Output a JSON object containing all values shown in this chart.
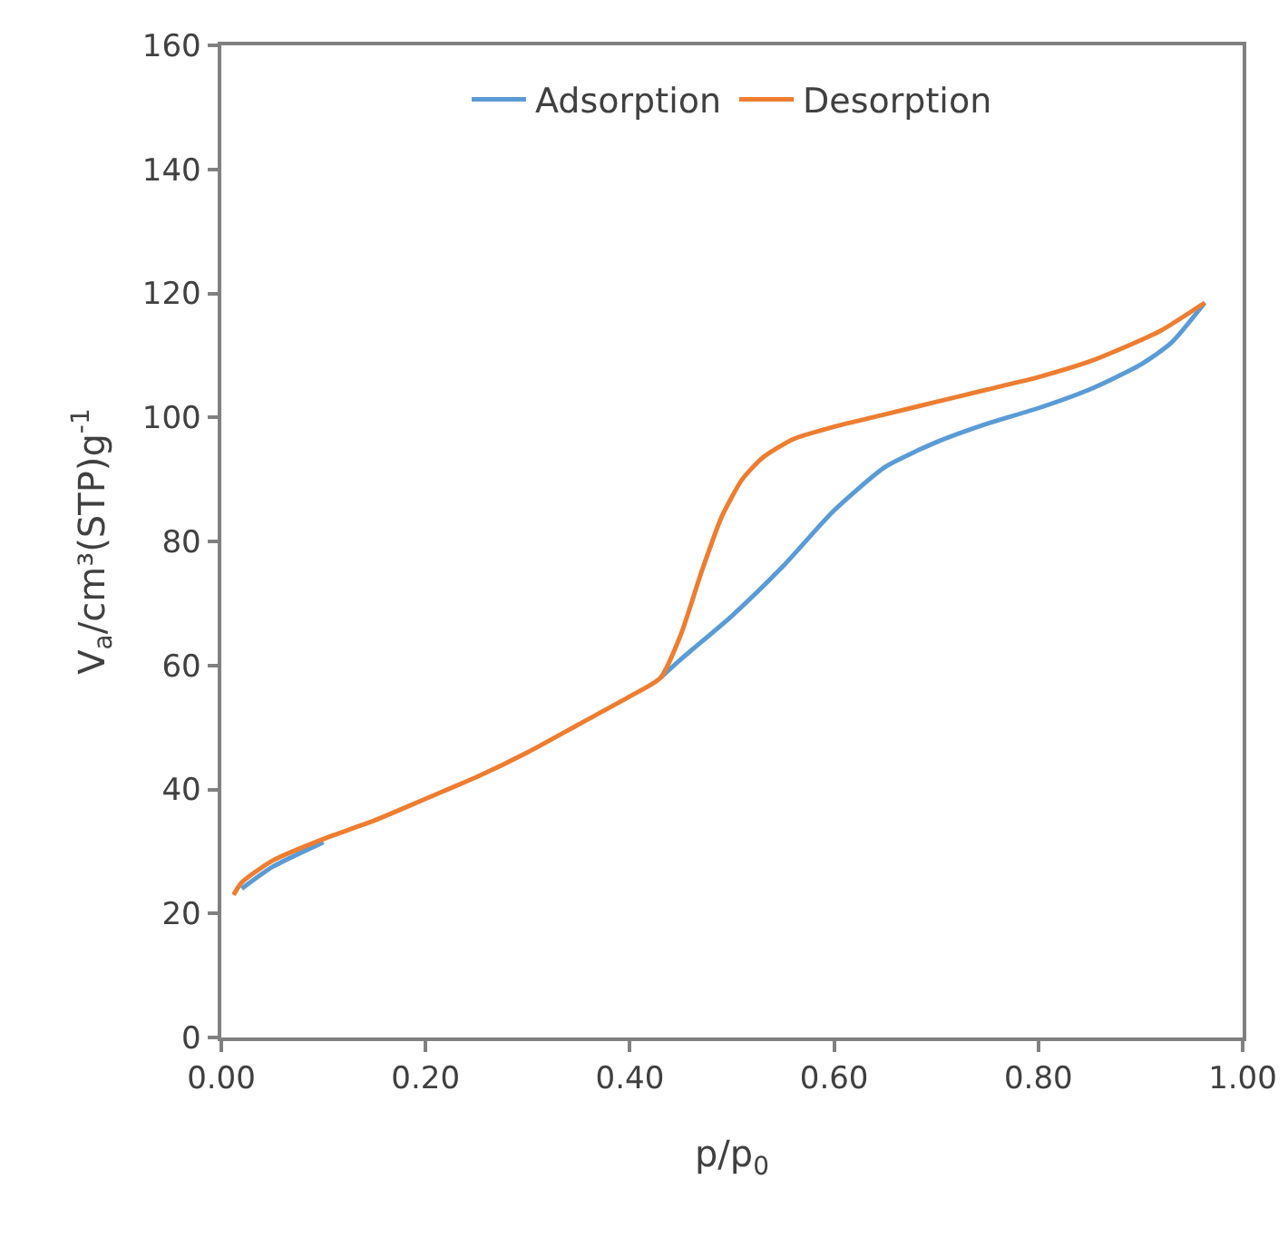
{
  "chart_data": {
    "type": "line",
    "xlabel": "p/p$_{0}$",
    "ylabel": "V$_{a}$/cm³(STP)g$^{-1}$",
    "xlim": [
      0,
      1
    ],
    "ylim": [
      0,
      160
    ],
    "xticks": [
      {
        "value": 0,
        "label": "0.00"
      },
      {
        "value": 0.2,
        "label": "0.20"
      },
      {
        "value": 0.4,
        "label": "0.40"
      },
      {
        "value": 0.6,
        "label": "0.60"
      },
      {
        "value": 0.8,
        "label": "0.80"
      },
      {
        "value": 1,
        "label": "1.00"
      }
    ],
    "yticks": [
      0,
      20,
      40,
      60,
      80,
      100,
      120,
      140,
      160
    ],
    "grid": false,
    "legend": "top",
    "marker": "none",
    "line_style": "solid",
    "series": [
      {
        "name": "Adsorption",
        "color": "#5b9bd5",
        "x": [
          0.02,
          0.05,
          0.1,
          0.15,
          0.2,
          0.25,
          0.3,
          0.35,
          0.4,
          0.43,
          0.45,
          0.5,
          0.55,
          0.6,
          0.65,
          0.7,
          0.75,
          0.8,
          0.85,
          0.9,
          0.93,
          0.963
        ],
        "values": [
          24,
          27.5,
          31.5,
          null,
          null,
          null,
          null,
          null,
          null,
          58,
          61,
          68,
          76,
          85,
          92,
          96,
          99,
          101.5,
          104.5,
          108.5,
          112,
          118.5
        ]
      },
      {
        "name": "Desorption",
        "color": "#ed7d31",
        "x": [
          0.012,
          0.02,
          0.05,
          0.1,
          0.15,
          0.2,
          0.25,
          0.3,
          0.35,
          0.4,
          0.43,
          0.45,
          0.47,
          0.49,
          0.51,
          0.53,
          0.56,
          0.6,
          0.65,
          0.7,
          0.75,
          0.8,
          0.85,
          0.88,
          0.92,
          0.963
        ],
        "values": [
          23,
          25,
          28.5,
          32,
          35,
          38.5,
          42,
          46,
          50.5,
          55,
          58,
          65,
          75,
          84,
          90,
          93.5,
          96.5,
          98.5,
          100.5,
          102.5,
          104.5,
          106.5,
          109,
          111,
          114,
          118.5
        ]
      }
    ]
  }
}
